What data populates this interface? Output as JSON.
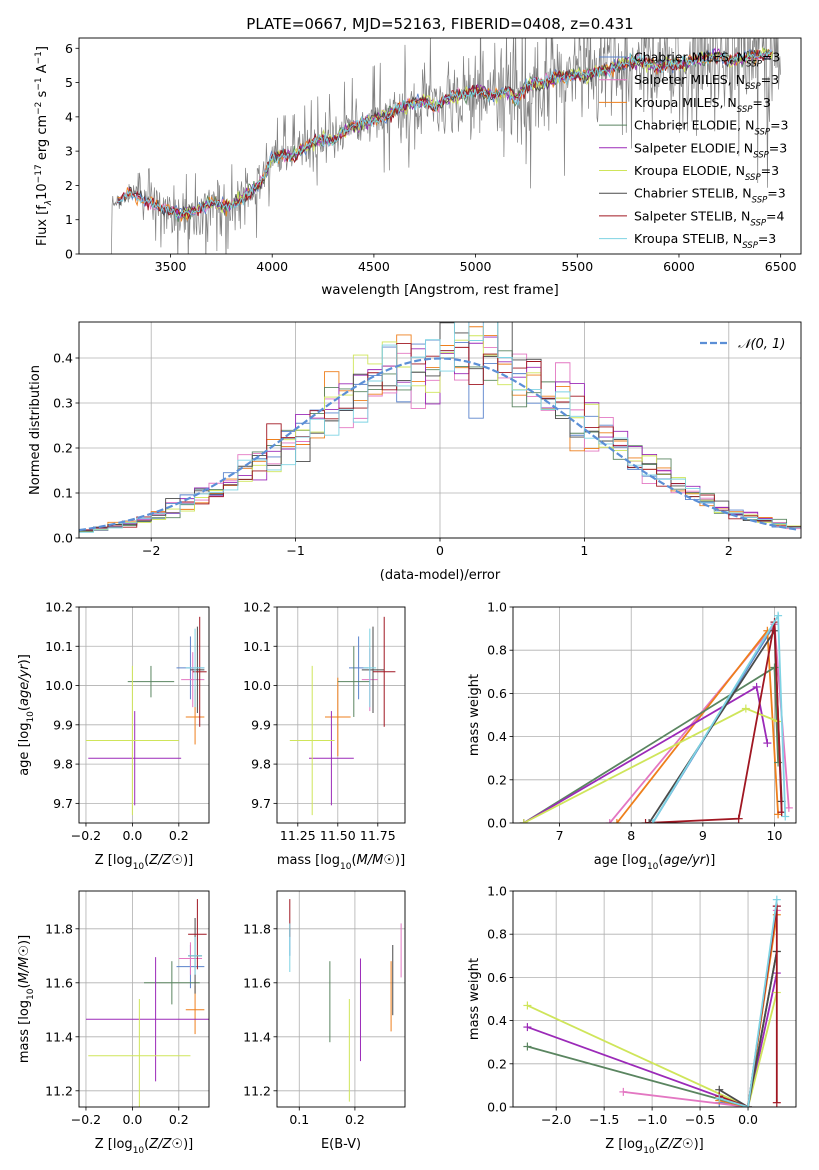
{
  "colors": {
    "Chabrier MILES": "#5a83cc",
    "Salpeter MILES": "#e377c2",
    "Kroupa MILES": "#ee7f1c",
    "Chabrier ELODIE": "#5a8560",
    "Salpeter ELODIE": "#9b2ab8",
    "Kroupa ELODIE": "#cfe55a",
    "Chabrier STELIB": "#4a4a4a",
    "Salpeter STELIB": "#a01722",
    "Kroupa STELIB": "#7ed3e3",
    "data": "#808080",
    "normal": "#5b8fd6"
  },
  "legend_labels": [
    {
      "model": "Chabrier MILES",
      "pre": "Chabrier MILES, N",
      "n": "3"
    },
    {
      "model": "Salpeter MILES",
      "pre": "Salpeter MILES, N",
      "n": "3"
    },
    {
      "model": "Kroupa MILES",
      "pre": "Kroupa MILES, N",
      "n": "3"
    },
    {
      "model": "Chabrier ELODIE",
      "pre": "Chabrier ELODIE, N",
      "n": "3"
    },
    {
      "model": "Salpeter ELODIE",
      "pre": "Salpeter ELODIE, N",
      "n": "3"
    },
    {
      "model": "Kroupa ELODIE",
      "pre": "Kroupa ELODIE, N",
      "n": "3"
    },
    {
      "model": "Chabrier STELIB",
      "pre": "Chabrier STELIB, N",
      "n": "3"
    },
    {
      "model": "Salpeter STELIB",
      "pre": "Salpeter STELIB, N",
      "n": "4"
    },
    {
      "model": "Kroupa STELIB",
      "pre": "Kroupa STELIB, N",
      "n": "3"
    }
  ],
  "legend_subscript": "SSP",
  "chart_data": [
    {
      "id": "spectrum",
      "type": "line",
      "title": "PLATE=0667, MJD=52163, FIBERID=0408, z=0.431",
      "xlabel": "wavelength [Angstrom, rest frame]",
      "ylabel_parts": [
        "Flux [f",
        "λ",
        "10",
        "−17",
        " erg cm",
        "−2",
        " s",
        "−1",
        " A",
        "−1",
        "]"
      ],
      "xlim": [
        3050,
        6600
      ],
      "ylim": [
        0,
        6.3
      ],
      "xticks": [
        3500,
        4000,
        4500,
        5000,
        5500,
        6000,
        6500
      ],
      "yticks": [
        0,
        1,
        2,
        3,
        4,
        5,
        6
      ],
      "continuum_knots": [
        [
          3200,
          1.4
        ],
        [
          3250,
          1.55
        ],
        [
          3300,
          1.75
        ],
        [
          3350,
          1.6
        ],
        [
          3400,
          1.55
        ],
        [
          3450,
          1.35
        ],
        [
          3500,
          1.2
        ],
        [
          3550,
          1.15
        ],
        [
          3600,
          1.25
        ],
        [
          3650,
          1.35
        ],
        [
          3700,
          1.5
        ],
        [
          3750,
          1.4
        ],
        [
          3800,
          1.4
        ],
        [
          3850,
          1.6
        ],
        [
          3900,
          1.9
        ],
        [
          3950,
          2.1
        ],
        [
          4000,
          2.8
        ],
        [
          4050,
          2.9
        ],
        [
          4100,
          2.85
        ],
        [
          4150,
          3.05
        ],
        [
          4200,
          3.25
        ],
        [
          4250,
          3.35
        ],
        [
          4300,
          3.3
        ],
        [
          4350,
          3.6
        ],
        [
          4400,
          3.7
        ],
        [
          4450,
          3.8
        ],
        [
          4500,
          3.95
        ],
        [
          4550,
          4.0
        ],
        [
          4600,
          4.2
        ],
        [
          4650,
          4.3
        ],
        [
          4700,
          4.4
        ],
        [
          4750,
          4.5
        ],
        [
          4800,
          4.3
        ],
        [
          4850,
          4.5
        ],
        [
          4900,
          4.6
        ],
        [
          4950,
          4.65
        ],
        [
          5000,
          4.8
        ],
        [
          5050,
          4.7
        ],
        [
          5100,
          4.6
        ],
        [
          5150,
          4.8
        ],
        [
          5200,
          4.5
        ],
        [
          5250,
          4.9
        ],
        [
          5300,
          5.0
        ],
        [
          5350,
          5.0
        ],
        [
          5400,
          5.15
        ],
        [
          5450,
          5.2
        ],
        [
          5500,
          5.25
        ],
        [
          5550,
          5.2
        ],
        [
          5600,
          5.3
        ],
        [
          5650,
          5.4
        ],
        [
          5700,
          5.5
        ],
        [
          5750,
          5.6
        ],
        [
          5800,
          5.65
        ],
        [
          5850,
          5.55
        ],
        [
          5900,
          5.45
        ],
        [
          5950,
          5.6
        ],
        [
          6000,
          5.5
        ],
        [
          6050,
          5.6
        ],
        [
          6100,
          5.7
        ],
        [
          6150,
          5.75
        ],
        [
          6200,
          5.8
        ],
        [
          6250,
          5.6
        ],
        [
          6300,
          5.7
        ],
        [
          6350,
          5.75
        ],
        [
          6400,
          5.8
        ],
        [
          6450,
          5.85
        ],
        [
          6500,
          5.9
        ]
      ],
      "data_noise_level": [
        [
          3200,
          0.1
        ],
        [
          3500,
          0.6
        ],
        [
          3800,
          1.0
        ],
        [
          4000,
          0.5
        ],
        [
          4500,
          0.7
        ],
        [
          4900,
          1.0
        ],
        [
          5200,
          1.4
        ],
        [
          5500,
          1.3
        ],
        [
          6000,
          1.6
        ],
        [
          6500,
          1.8
        ]
      ]
    },
    {
      "id": "residuals",
      "type": "histogram",
      "xlabel": "(data-model)/error",
      "ylabel": "Normed distribution",
      "xlim": [
        -2.5,
        2.5
      ],
      "ylim": [
        0,
        0.48
      ],
      "xticks": [
        -2,
        -1,
        0,
        1,
        2
      ],
      "yticks": [
        0.0,
        0.1,
        0.2,
        0.3,
        0.4
      ],
      "legend": "𝒩(0, 1)",
      "bin_width": 0.1
    },
    {
      "id": "age-vs-z",
      "type": "scatter",
      "xlabel": "Z [log10(Z/Z☉)]",
      "ylabel": "age  [log10(age/yr)]",
      "xlim": [
        -0.23,
        0.33
      ],
      "ylim": [
        9.65,
        10.2
      ],
      "xticks": [
        -0.2,
        0.0,
        0.2
      ],
      "yticks": [
        9.7,
        9.8,
        9.9,
        10.0,
        10.1,
        10.2
      ],
      "points": [
        {
          "model": "Chabrier MILES",
          "x": 0.25,
          "xerr": 0.06,
          "y": 10.045,
          "yerr": 0.08
        },
        {
          "model": "Salpeter MILES",
          "x": 0.26,
          "xerr": 0.05,
          "y": 10.015,
          "yerr": 0.07
        },
        {
          "model": "Kroupa MILES",
          "x": 0.27,
          "xerr": 0.04,
          "y": 9.92,
          "yerr": 0.07
        },
        {
          "model": "Chabrier ELODIE",
          "x": 0.08,
          "xerr": 0.1,
          "y": 10.01,
          "yerr": 0.04
        },
        {
          "model": "Salpeter ELODIE",
          "x": 0.01,
          "xerr": 0.2,
          "y": 9.815,
          "yerr": 0.12
        },
        {
          "model": "Kroupa ELODIE",
          "x": 0.0,
          "xerr": 0.2,
          "y": 9.86,
          "yerr": 0.19
        },
        {
          "model": "Chabrier STELIB",
          "x": 0.28,
          "xerr": 0.03,
          "y": 10.04,
          "yerr": 0.11
        },
        {
          "model": "Salpeter STELIB",
          "x": 0.29,
          "xerr": 0.03,
          "y": 10.035,
          "yerr": 0.14
        },
        {
          "model": "Kroupa STELIB",
          "x": 0.27,
          "xerr": 0.04,
          "y": 10.045,
          "yerr": 0.1
        }
      ]
    },
    {
      "id": "age-vs-mass",
      "type": "scatter",
      "xlabel": "mass [log10(M/M☉)]",
      "ylabel": "",
      "xlim": [
        11.12,
        11.92
      ],
      "ylim": [
        9.65,
        10.2
      ],
      "xticks": [
        11.25,
        11.5,
        11.75
      ],
      "yticks": [
        9.7,
        9.8,
        9.9,
        10.0,
        10.1,
        10.2
      ],
      "points": [
        {
          "model": "Chabrier MILES",
          "x": 11.63,
          "xerr": 0.06,
          "y": 10.045,
          "yerr": 0.08
        },
        {
          "model": "Salpeter MILES",
          "x": 11.7,
          "xerr": 0.05,
          "y": 10.015,
          "yerr": 0.08
        },
        {
          "model": "Kroupa MILES",
          "x": 11.5,
          "xerr": 0.08,
          "y": 9.92,
          "yerr": 0.1
        },
        {
          "model": "Chabrier ELODIE",
          "x": 11.6,
          "xerr": 0.1,
          "y": 10.01,
          "yerr": 0.09
        },
        {
          "model": "Salpeter ELODIE",
          "x": 11.46,
          "xerr": 0.14,
          "y": 9.815,
          "yerr": 0.12
        },
        {
          "model": "Kroupa ELODIE",
          "x": 11.34,
          "xerr": 0.14,
          "y": 9.86,
          "yerr": 0.19
        },
        {
          "model": "Chabrier STELIB",
          "x": 11.72,
          "xerr": 0.07,
          "y": 10.04,
          "yerr": 0.11
        },
        {
          "model": "Salpeter STELIB",
          "x": 11.79,
          "xerr": 0.07,
          "y": 10.035,
          "yerr": 0.14
        },
        {
          "model": "Kroupa STELIB",
          "x": 11.7,
          "xerr": 0.04,
          "y": 10.045,
          "yerr": 0.1
        }
      ]
    },
    {
      "id": "weight-vs-age",
      "type": "line",
      "xlabel": "age  [log10(age/yr)]",
      "ylabel": "mass weight",
      "xlim": [
        6.35,
        10.3
      ],
      "ylim": [
        0,
        1.0
      ],
      "xticks": [
        7,
        8,
        9,
        10
      ],
      "yticks": [
        0.0,
        0.2,
        0.4,
        0.6,
        0.8,
        1.0
      ],
      "series": [
        {
          "model": "Chabrier MILES",
          "x": [
            8.3,
            10.0,
            10.1
          ],
          "y": [
            0.0,
            0.92,
            0.05
          ]
        },
        {
          "model": "Salpeter MILES",
          "x": [
            7.7,
            10.0,
            10.2
          ],
          "y": [
            0.0,
            0.92,
            0.07
          ]
        },
        {
          "model": "Kroupa MILES",
          "x": [
            7.8,
            9.9,
            10.05
          ],
          "y": [
            0.0,
            0.89,
            0.04
          ]
        },
        {
          "model": "Chabrier ELODIE",
          "x": [
            6.5,
            10.0,
            10.05
          ],
          "y": [
            0.0,
            0.72,
            0.28
          ]
        },
        {
          "model": "Salpeter ELODIE",
          "x": [
            6.5,
            9.75,
            9.9
          ],
          "y": [
            0.0,
            0.63,
            0.37
          ]
        },
        {
          "model": "Kroupa ELODIE",
          "x": [
            6.5,
            9.6,
            10.05
          ],
          "y": [
            0.0,
            0.53,
            0.47
          ]
        },
        {
          "model": "Chabrier STELIB",
          "x": [
            8.25,
            10.0,
            10.1
          ],
          "y": [
            0.0,
            0.89,
            0.1
          ]
        },
        {
          "model": "Salpeter STELIB",
          "x": [
            8.2,
            9.5,
            10.0,
            10.1
          ],
          "y": [
            0.0,
            0.02,
            0.93,
            0.05
          ]
        },
        {
          "model": "Kroupa STELIB",
          "x": [
            8.3,
            10.05,
            10.15
          ],
          "y": [
            0.0,
            0.96,
            0.03
          ]
        }
      ]
    },
    {
      "id": "mass-vs-z",
      "type": "scatter",
      "xlabel": "Z [log10(Z/Z☉)]",
      "ylabel": "mass [log10(M/M☉)]",
      "xlim": [
        -0.23,
        0.33
      ],
      "ylim": [
        11.14,
        11.94
      ],
      "xticks": [
        -0.2,
        0.0,
        0.2
      ],
      "yticks": [
        11.2,
        11.4,
        11.6,
        11.8
      ],
      "points": [
        {
          "model": "Chabrier MILES",
          "x": 0.25,
          "xerr": 0.06,
          "y": 11.66,
          "yerr": 0.08
        },
        {
          "model": "Salpeter MILES",
          "x": 0.25,
          "xerr": 0.05,
          "y": 11.69,
          "yerr": 0.06
        },
        {
          "model": "Kroupa MILES",
          "x": 0.27,
          "xerr": 0.04,
          "y": 11.5,
          "yerr": 0.09
        },
        {
          "model": "Chabrier ELODIE",
          "x": 0.17,
          "xerr": 0.12,
          "y": 11.6,
          "yerr": 0.08
        },
        {
          "model": "Salpeter ELODIE",
          "x": 0.1,
          "xerr": 0.3,
          "y": 11.465,
          "yerr": 0.23
        },
        {
          "model": "Kroupa ELODIE",
          "x": 0.03,
          "xerr": 0.22,
          "y": 11.33,
          "yerr": 0.21
        },
        {
          "model": "Chabrier STELIB",
          "x": 0.27,
          "xerr": 0.03,
          "y": 11.7,
          "yerr": 0.14
        },
        {
          "model": "Salpeter STELIB",
          "x": 0.28,
          "xerr": 0.04,
          "y": 11.78,
          "yerr": 0.13
        },
        {
          "model": "Kroupa STELIB",
          "x": 0.27,
          "xerr": 0.03,
          "y": 11.7,
          "yerr": 0.07
        }
      ]
    },
    {
      "id": "mass-vs-ebv",
      "type": "scatter",
      "xlabel": "E(B-V)",
      "ylabel": "",
      "xlim": [
        0.06,
        0.29
      ],
      "ylim": [
        11.14,
        11.94
      ],
      "xticks": [
        0.1,
        0.2
      ],
      "yticks": [
        11.2,
        11.4,
        11.6,
        11.8
      ],
      "points": [
        {
          "model": "Chabrier MILES",
          "x": 0.083,
          "y": 11.75,
          "yerr": 0.05
        },
        {
          "model": "Salpeter MILES",
          "x": 0.283,
          "y": 11.72,
          "yerr": 0.1
        },
        {
          "model": "Kroupa MILES",
          "x": 0.265,
          "y": 11.55,
          "yerr": 0.13
        },
        {
          "model": "Chabrier ELODIE",
          "x": 0.155,
          "y": 11.53,
          "yerr": 0.15
        },
        {
          "model": "Salpeter ELODIE",
          "x": 0.21,
          "y": 11.5,
          "yerr": 0.19
        },
        {
          "model": "Kroupa ELODIE",
          "x": 0.19,
          "y": 11.35,
          "yerr": 0.19
        },
        {
          "model": "Chabrier STELIB",
          "x": 0.268,
          "y": 11.61,
          "yerr": 0.13
        },
        {
          "model": "Salpeter STELIB",
          "x": 0.083,
          "y": 11.84,
          "yerr": 0.07
        },
        {
          "model": "Kroupa STELIB",
          "x": 0.083,
          "y": 11.73,
          "yerr": 0.09
        }
      ]
    },
    {
      "id": "weight-vs-z",
      "type": "line",
      "xlabel": "Z [log10(Z/Z☉)]",
      "ylabel": "mass weight",
      "xlim": [
        -2.45,
        0.5
      ],
      "ylim": [
        0,
        1.0
      ],
      "xticks": [
        -2.0,
        -1.5,
        -1.0,
        -0.5,
        0.0
      ],
      "yticks": [
        0.0,
        0.2,
        0.4,
        0.6,
        0.8,
        1.0
      ],
      "series": [
        {
          "model": "Chabrier MILES",
          "x": [
            -0.3,
            0.0,
            0.3
          ],
          "y": [
            0.02,
            0.0,
            0.93
          ]
        },
        {
          "model": "Salpeter MILES",
          "x": [
            -1.3,
            0.0,
            0.3
          ],
          "y": [
            0.07,
            0.0,
            0.91
          ]
        },
        {
          "model": "Kroupa MILES",
          "x": [
            -0.3,
            0.0,
            0.3
          ],
          "y": [
            0.03,
            0.0,
            0.89
          ]
        },
        {
          "model": "Chabrier ELODIE",
          "x": [
            -2.3,
            0.0,
            0.3
          ],
          "y": [
            0.28,
            0.0,
            0.72
          ]
        },
        {
          "model": "Salpeter ELODIE",
          "x": [
            -2.3,
            0.0,
            0.3
          ],
          "y": [
            0.37,
            0.0,
            0.62
          ]
        },
        {
          "model": "Kroupa ELODIE",
          "x": [
            -2.3,
            0.0,
            0.3
          ],
          "y": [
            0.47,
            0.0,
            0.53
          ]
        },
        {
          "model": "Chabrier STELIB",
          "x": [
            -0.3,
            0.0,
            0.3
          ],
          "y": [
            0.08,
            0.0,
            0.72
          ]
        },
        {
          "model": "Salpeter STELIB",
          "x": [
            -0.3,
            0.0,
            0.3,
            0.3
          ],
          "y": [
            0.05,
            0.0,
            0.93,
            0.02
          ]
        },
        {
          "model": "Kroupa STELIB",
          "x": [
            -0.3,
            0.0,
            0.3
          ],
          "y": [
            0.04,
            0.0,
            0.96
          ]
        }
      ]
    }
  ]
}
